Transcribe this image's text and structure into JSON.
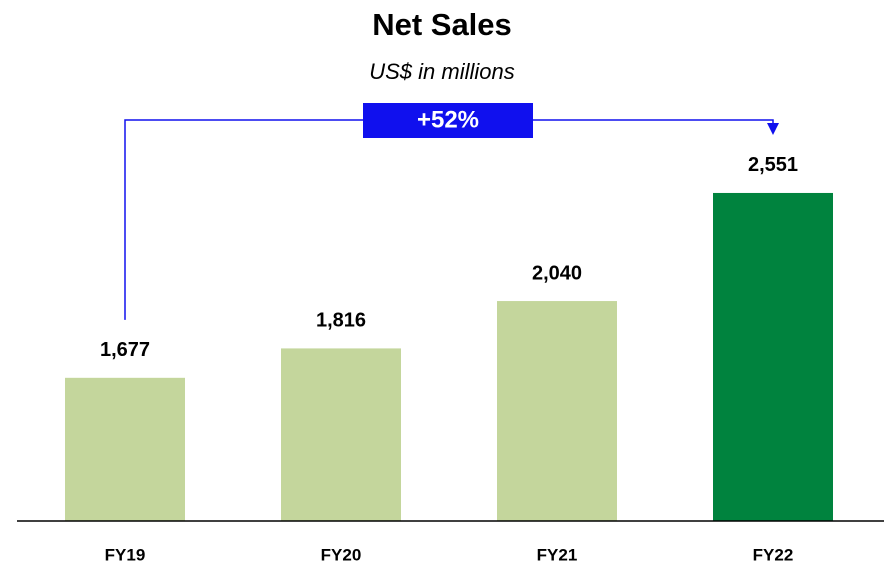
{
  "chart_data": {
    "type": "bar",
    "title": "Net Sales",
    "subtitle": "US$ in millions",
    "categories": [
      "FY19",
      "FY20",
      "FY21",
      "FY22"
    ],
    "values": [
      1677,
      1816,
      2040,
      2551
    ],
    "value_labels": [
      "1,677",
      "1,816",
      "2,040",
      "2,551"
    ],
    "colors": [
      "#c4d69c",
      "#c4d69c",
      "#c4d69c",
      "#00833e"
    ],
    "ylim": [
      1000,
      3000
    ],
    "annotation": "+52%",
    "annotation_color": "#1010ee"
  }
}
